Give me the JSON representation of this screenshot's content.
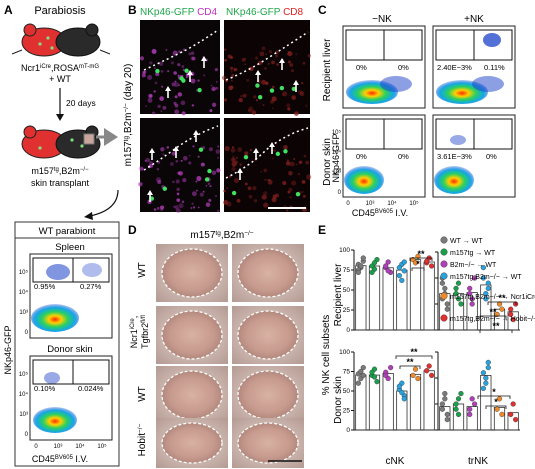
{
  "panels": {
    "A": {
      "letter": "A",
      "title": "Parabiosis",
      "mouse_label_line1": "Ncr1",
      "mouse_label_sup": "iCre",
      "mouse_label_line1b": ",ROSA",
      "mouse_label_sup2": "mT-mG",
      "mouse_label_line2": "+ WT",
      "days": "20 days",
      "transplant_line1": "m157",
      "transplant_sup": "tg",
      "transplant_line1b": ",B2m",
      "transplant_sup2": "−/−",
      "transplant_line2": "skin transplant",
      "box_title": "WT parabiont",
      "plot1_title": "Spleen",
      "plot1_q_left": "0.95%",
      "plot1_q_right": "0.27%",
      "plot2_title": "Donor skin",
      "plot2_q_left": "0.10%",
      "plot2_q_right": "0.024%",
      "ylabel": "NKp46-GFP",
      "xlabel_main": "CD45",
      "xlabel_sub": "BV605",
      "xlabel_suffix": " I.V.",
      "ticks_y": [
        "0",
        "10³",
        "10⁴",
        "10⁵"
      ],
      "ticks_x": [
        "0",
        "10³",
        "10⁴",
        "10⁵"
      ]
    },
    "B": {
      "letter": "B",
      "header1_a": "NKp46-GFP",
      "header1_b": "CD4",
      "header2_a": "NKp46-GFP",
      "header2_b": "CD8",
      "side_label_a": "m157",
      "side_label_sup": "tg",
      "side_label_b": ",B2m",
      "side_label_sup2": "−/−",
      "side_label_c": " (day 20)"
    },
    "C": {
      "letter": "C",
      "col1": "−NK",
      "col2": "+NK",
      "row1": "Recipient liver",
      "row2": "Donor skin",
      "r1c1_left": "0%",
      "r1c1_right": "0%",
      "r1c2_left": "2.40E−3%",
      "r1c2_right": "0.11%",
      "r2c1_left": "0%",
      "r2c1_right": "0%",
      "r2c2_left": "3.61E−3%",
      "r2c2_right": "0%",
      "ylabel": "NKp46-GFP",
      "xlabel_main": "CD45",
      "xlabel_sub": "BV605",
      "xlabel_suffix": " I.V.",
      "ticks_y": [
        "0",
        "10³",
        "10⁴",
        "10⁵"
      ],
      "ticks_x": [
        "0",
        "10³",
        "10⁴",
        "10⁵"
      ]
    },
    "D": {
      "letter": "D",
      "title_a": "m157",
      "title_sup": "tg",
      "title_b": ",B2m",
      "title_sup2": "−/−",
      "row1": "WT",
      "row2a": "Ncr1",
      "row2_sup": "iCre",
      "row2b": "Tgfbr2",
      "row2_sup2": "fl/fl",
      "row3": "WT",
      "row4": "Hobit",
      "row4_sup": "−/−"
    },
    "E": {
      "letter": "E",
      "ylabel": "% NK cell subsets",
      "row1": "Recipient liver",
      "row2": "Donor skin",
      "xcat1": "cNK",
      "xcat2": "trNK",
      "legend": [
        {
          "label": "WT → WT",
          "color": "#7a7a7a"
        },
        {
          "label": "m157tg → WT",
          "color": "#1aa04a"
        },
        {
          "label": "B2m−/− → WT",
          "color": "#b040b8"
        },
        {
          "label": "m157tg,B2m−/− → WT",
          "color": "#2aa3dc"
        },
        {
          "label": "m157tg,B2m−/− → Ncr1iCre,Tgfbr2fl/fl",
          "color": "#f08a28"
        },
        {
          "label": "m157tg,B2m−/− → Hobit−/−",
          "color": "#e23030"
        }
      ],
      "sig": [
        "**",
        "*",
        "**",
        "**",
        "**",
        "**",
        "**",
        "*",
        "*"
      ]
    }
  },
  "chart_data": [
    {
      "type": "scatter",
      "title": "Recipient liver cNK",
      "ylabel": "% NK cell subsets",
      "ylim": [
        0,
        100
      ],
      "series": [
        {
          "name": "WT → WT",
          "values": [
            82,
            78,
            86,
            75,
            80,
            90,
            72
          ]
        },
        {
          "name": "m157tg → WT",
          "values": [
            80,
            76,
            88,
            72,
            84
          ]
        },
        {
          "name": "B2m−/− → WT",
          "values": [
            78,
            85,
            72,
            80,
            74
          ]
        },
        {
          "name": "m157tg,B2m−/− → WT",
          "values": [
            68,
            82,
            74,
            78,
            62,
            85
          ]
        },
        {
          "name": "m157tg,B2m−/− → Ncr1iCre,Tgfbr2fl/fl",
          "values": [
            88,
            84,
            92
          ]
        },
        {
          "name": "m157tg,B2m−/− → Hobit−/−",
          "values": [
            84,
            90,
            80,
            86
          ]
        }
      ]
    },
    {
      "type": "scatter",
      "title": "Recipient liver trNK",
      "ylim": [
        0,
        30
      ],
      "series": [
        {
          "name": "WT → WT",
          "values": [
            12,
            16,
            10,
            18,
            14,
            8,
            20
          ]
        },
        {
          "name": "m157tg → WT",
          "values": [
            14,
            18,
            10,
            16,
            12
          ]
        },
        {
          "name": "B2m−/− → WT",
          "values": [
            16,
            12,
            20,
            14,
            10
          ]
        },
        {
          "name": "m157tg,B2m−/− → WT",
          "values": [
            20,
            14,
            18,
            24,
            12,
            16
          ]
        },
        {
          "name": "m157tg,B2m−/− → Ncr1iCre,Tgfbr2fl/fl",
          "values": [
            6,
            10,
            8
          ]
        },
        {
          "name": "m157tg,B2m−/− → Hobit−/−",
          "values": [
            8,
            4,
            10,
            6
          ]
        }
      ]
    },
    {
      "type": "scatter",
      "title": "Donor skin cNK",
      "ylim": [
        0,
        100
      ],
      "series": [
        {
          "name": "WT → WT",
          "values": [
            72,
            66,
            80,
            60,
            75,
            70
          ]
        },
        {
          "name": "m157tg → WT",
          "values": [
            70,
            78,
            62,
            74,
            68
          ]
        },
        {
          "name": "B2m−/− → WT",
          "values": [
            74,
            66,
            80,
            70
          ]
        },
        {
          "name": "m157tg,B2m−/− → WT",
          "values": [
            52,
            60,
            44,
            56,
            48,
            40
          ]
        },
        {
          "name": "m157tg,B2m−/− → Ncr1iCre,Tgfbr2fl/fl",
          "values": [
            70,
            78,
            66
          ]
        },
        {
          "name": "m157tg,B2m−/− → Hobit−/−",
          "values": [
            76,
            82,
            70
          ]
        }
      ]
    },
    {
      "type": "scatter",
      "title": "Donor skin trNK",
      "ylim": [
        0,
        30
      ],
      "series": [
        {
          "name": "WT → WT",
          "values": [
            8,
            12,
            6,
            10,
            14,
            4
          ]
        },
        {
          "name": "m157tg → WT",
          "values": [
            10,
            6,
            14,
            8,
            12
          ]
        },
        {
          "name": "B2m−/− → WT",
          "values": [
            8,
            12,
            10,
            6
          ]
        },
        {
          "name": "m157tg,B2m−/− → WT",
          "values": [
            22,
            18,
            26,
            16,
            20,
            24
          ]
        },
        {
          "name": "m157tg,B2m−/− → Ncr1iCre,Tgfbr2fl/fl",
          "values": [
            8,
            12,
            6
          ]
        },
        {
          "name": "m157tg,B2m−/− → Hobit−/−",
          "values": [
            6,
            10,
            4
          ]
        }
      ]
    }
  ]
}
